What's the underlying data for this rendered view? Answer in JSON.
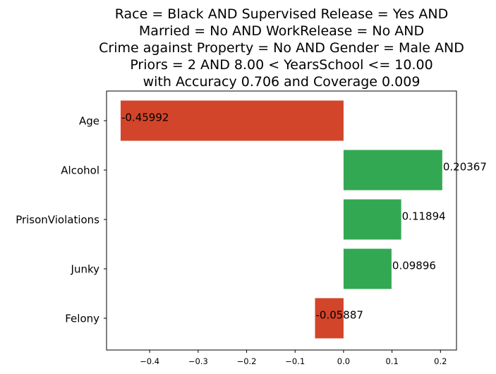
{
  "chart_data": {
    "type": "bar",
    "orientation": "horizontal",
    "title_lines": [
      "Race = Black AND Supervised Release = Yes AND",
      "Married = No AND WorkRelease = No AND",
      "Crime against Property = No AND Gender = Male AND",
      "Priors = 2 AND 8.00 < YearsSchool <= 10.00",
      "with Accuracy 0.706 and Coverage 0.009"
    ],
    "categories": [
      "Age",
      "Alcohol",
      "PrisonViolations",
      "Junky",
      "Felony"
    ],
    "values": [
      -0.45992,
      0.20367,
      0.11894,
      0.09896,
      -0.05887
    ],
    "value_labels": [
      "-0.45992",
      "0.20367",
      "0.11894",
      "0.09896",
      "-0.05887"
    ],
    "xlim": [
      -0.489,
      0.233
    ],
    "xticks": [
      -0.4,
      -0.3,
      -0.2,
      -0.1,
      0.0,
      0.1,
      0.2
    ],
    "xtick_labels": [
      "−0.4",
      "−0.3",
      "−0.2",
      "−0.1",
      "0.0",
      "0.1",
      "0.2"
    ],
    "xlabel": "",
    "ylabel": "",
    "grid": false,
    "colors": {
      "positive": "#33a852",
      "negative": "#d2452a"
    }
  }
}
